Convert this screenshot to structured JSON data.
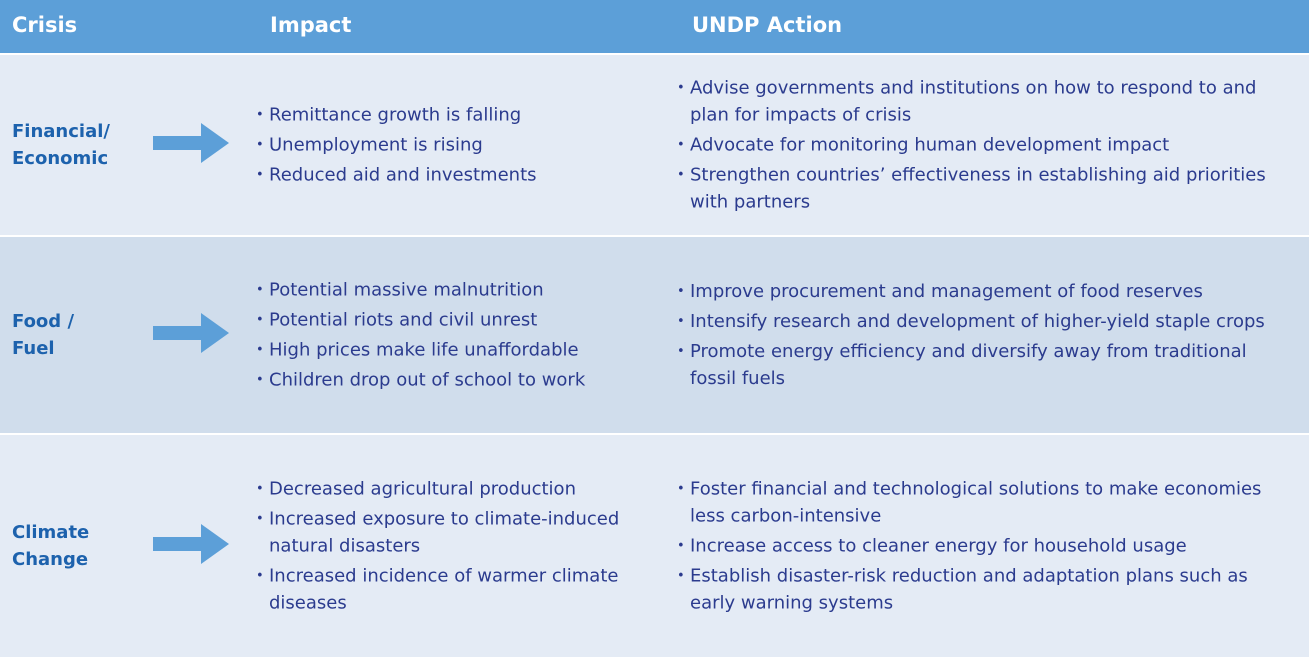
{
  "table": {
    "header": [
      "Crisis",
      "Impact",
      "UNDP Action"
    ],
    "rows": [
      {
        "crisis": "Financial/ Economic",
        "impact": [
          "Remittance growth is falling",
          "Unemployment is rising",
          "Reduced aid and investments"
        ],
        "action": [
          "Advise governments and institutions on how to respond to and plan for impacts of crisis",
          "Advocate for monitoring human development impact",
          "Strengthen countries’ effectiveness in establishing aid priorities with partners"
        ]
      },
      {
        "crisis": "Food / Fuel",
        "impact": [
          "Potential massive malnutrition",
          "Potential riots and civil unrest",
          "High prices make life unaffordable",
          "Children drop out of school to work"
        ],
        "action": [
          "Improve procurement and management of food reserves",
          "Intensify research and development of higher-yield staple crops",
          "Promote energy efficiency and diversify away from traditional fossil fuels"
        ]
      },
      {
        "crisis": "Climate Change",
        "impact": [
          "Decreased agricultural production",
          "Increased exposure to climate-induced natural disasters",
          "Increased incidence of warmer climate diseases"
        ],
        "action": [
          "Foster financial and technological solutions to make economies less carbon-intensive",
          "Increase access to cleaner energy for household usage",
          "Establish disaster-risk reduction and adaptation plans such as early warning systems"
        ]
      }
    ]
  }
}
